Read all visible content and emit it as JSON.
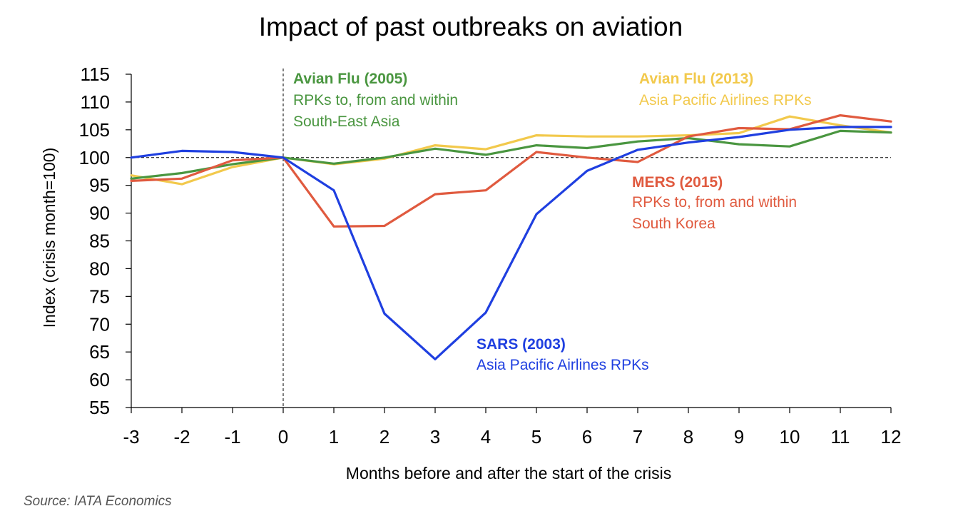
{
  "chart_data": {
    "type": "line",
    "title": "Impact of past outbreaks on aviation",
    "xlabel": "Months before and after the start of the crisis",
    "ylabel": "Index (crisis month=100)",
    "x": [
      -3,
      -2,
      -1,
      0,
      1,
      2,
      3,
      4,
      5,
      6,
      7,
      8,
      9,
      10,
      11,
      12
    ],
    "xlim": [
      -3,
      12
    ],
    "ylim": [
      55,
      115
    ],
    "yticks": [
      55,
      60,
      65,
      70,
      75,
      80,
      85,
      90,
      95,
      100,
      105,
      110,
      115
    ],
    "reference_line": 100,
    "grid": false,
    "legend": "none",
    "series": [
      {
        "key": "avian2013",
        "color": "#F2C94C",
        "values": [
          96.8,
          95.2,
          98.3,
          100,
          98.8,
          99.8,
          102.2,
          101.5,
          104.0,
          103.8,
          103.8,
          104.0,
          104.4,
          107.4,
          105.8,
          104.5
        ]
      },
      {
        "key": "avian2005",
        "color": "#4A9640",
        "values": [
          96.2,
          97.2,
          98.8,
          100,
          98.9,
          100.0,
          101.6,
          100.5,
          102.2,
          101.7,
          102.9,
          103.5,
          102.4,
          102.0,
          104.8,
          104.5
        ]
      },
      {
        "key": "mers2015",
        "color": "#E05A3F",
        "values": [
          95.8,
          96.2,
          99.5,
          100,
          87.6,
          87.7,
          93.4,
          94.1,
          101.0,
          100.0,
          99.2,
          103.8,
          105.3,
          105.1,
          107.6,
          106.5
        ]
      },
      {
        "key": "sars2003",
        "color": "#1F3FE0",
        "values": [
          100.0,
          101.2,
          101.0,
          100,
          94.1,
          71.9,
          63.7,
          72.1,
          89.8,
          97.6,
          101.4,
          102.7,
          103.7,
          105.0,
          105.5,
          105.5
        ]
      }
    ],
    "annotations": {
      "avian2005": {
        "head": "Avian Flu (2005)",
        "lines": [
          "RPKs to, from and within",
          "South-East Asia"
        ],
        "color": "#4A9640"
      },
      "avian2013": {
        "head": "Avian Flu (2013)",
        "lines": [
          "Asia Pacific Airlines RPKs"
        ],
        "color": "#F2C94C"
      },
      "mers2015": {
        "head": "MERS (2015)",
        "lines": [
          "RPKs to, from and within",
          "South Korea"
        ],
        "color": "#E05A3F"
      },
      "sars2003": {
        "head": "SARS (2003)",
        "lines": [
          "Asia Pacific Airlines RPKs"
        ],
        "color": "#1F3FE0"
      }
    },
    "source": "Source: IATA Economics"
  }
}
